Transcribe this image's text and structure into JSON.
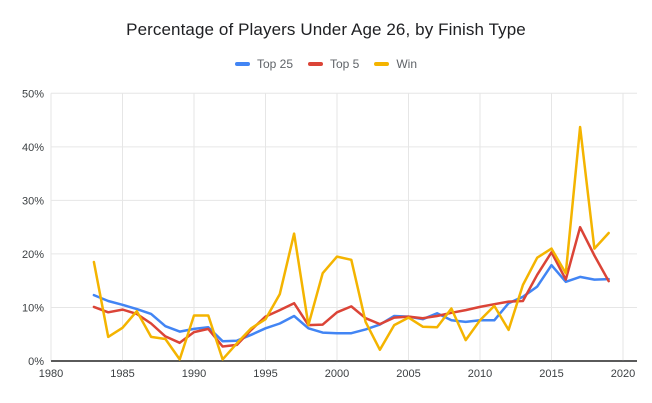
{
  "chart_data": {
    "type": "line",
    "title": "Percentage of Players Under Age 26, by Finish Type",
    "xlabel": "",
    "ylabel": "",
    "grid": true,
    "legend_position": "top",
    "years": [
      1983,
      1984,
      1985,
      1986,
      1987,
      1988,
      1989,
      1990,
      1991,
      1992,
      1993,
      1994,
      1995,
      1996,
      1997,
      1998,
      1999,
      2000,
      2001,
      2002,
      2003,
      2004,
      2005,
      2006,
      2007,
      2008,
      2009,
      2010,
      2011,
      2012,
      2013,
      2014,
      2015,
      2016,
      2017,
      2018,
      2019
    ],
    "series": [
      {
        "name": "Top 25",
        "color": "#4285F4",
        "values": [
          12.3,
          11.2,
          10.5,
          9.7,
          8.8,
          6.5,
          5.5,
          6.0,
          6.3,
          3.7,
          3.8,
          4.9,
          6.1,
          7.0,
          8.4,
          6.1,
          5.3,
          5.2,
          5.2,
          5.9,
          6.8,
          8.4,
          8.3,
          7.8,
          8.9,
          7.6,
          7.3,
          7.6,
          7.6,
          10.8,
          12.0,
          13.9,
          17.9,
          14.8,
          15.7,
          15.2,
          15.3
        ]
      },
      {
        "name": "Top 5",
        "color": "#DB4437",
        "values": [
          10.1,
          9.1,
          9.6,
          8.8,
          7.0,
          4.6,
          3.4,
          5.4,
          6.0,
          2.7,
          3.0,
          5.8,
          8.3,
          9.5,
          10.8,
          6.7,
          6.8,
          9.1,
          10.2,
          8.0,
          6.9,
          8.1,
          8.3,
          8.0,
          8.4,
          9.0,
          9.5,
          10.1,
          10.6,
          11.1,
          11.2,
          16.1,
          20.3,
          15.2,
          25.0,
          19.7,
          14.9
        ]
      },
      {
        "name": "Win",
        "color": "#F4B400",
        "values": [
          18.5,
          4.5,
          6.2,
          9.3,
          4.5,
          4.1,
          0.3,
          8.5,
          8.5,
          0.3,
          3.3,
          6.1,
          7.8,
          12.5,
          23.8,
          6.7,
          16.4,
          19.5,
          18.9,
          7.3,
          2.1,
          6.7,
          8.1,
          6.4,
          6.3,
          9.8,
          3.9,
          7.6,
          10.3,
          5.8,
          14.2,
          19.3,
          21.0,
          16.4,
          43.7,
          21.0,
          23.9
        ]
      }
    ],
    "x_axis": {
      "min": 1980,
      "max": 2020,
      "tick_labels": [
        "1980",
        "1985",
        "1990",
        "1995",
        "2000",
        "2005",
        "2010",
        "2015",
        "2020"
      ]
    },
    "y_axis": {
      "min": 0,
      "max": 50,
      "tick_labels": [
        "0%",
        "10%",
        "20%",
        "30%",
        "40%",
        "50%"
      ]
    }
  }
}
